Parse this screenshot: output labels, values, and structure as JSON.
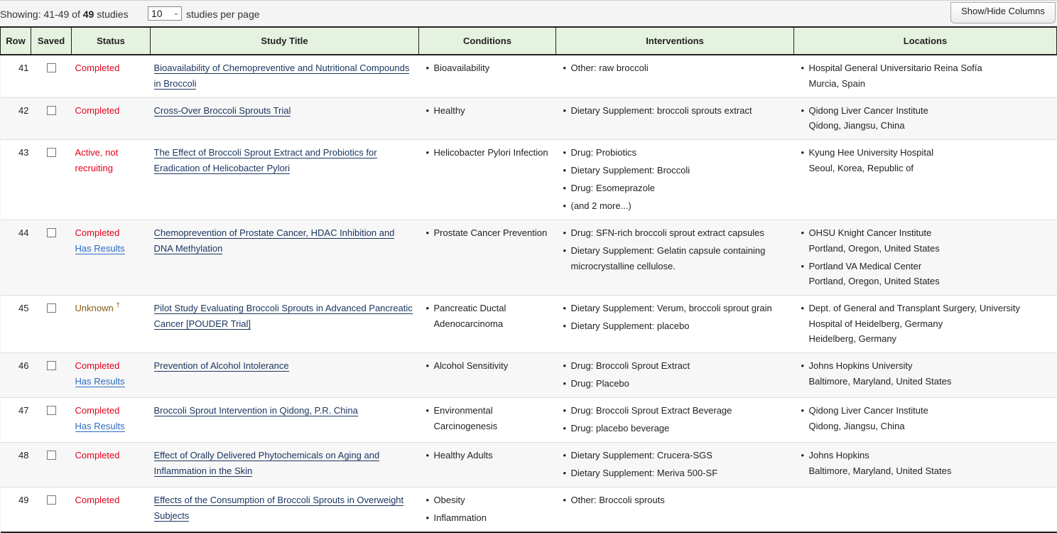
{
  "toolbar": {
    "showing_prefix": "Showing: 41-49 of ",
    "total": "49",
    "showing_suffix": " studies",
    "per_page_value": "10",
    "per_page_label": "studies per page",
    "show_hide_label": "Show/Hide Columns"
  },
  "columns": [
    "Row",
    "Saved",
    "Status",
    "Study Title",
    "Conditions",
    "Interventions",
    "Locations"
  ],
  "colors": {
    "completed": "#e3001b",
    "unknown": "#8a5a14",
    "link": "#1b3660",
    "has_results": "#2a6bc4",
    "header_bg": "#e6f2e0"
  },
  "rows": [
    {
      "row": "41",
      "saved": false,
      "status": "Completed",
      "status_type": "completed",
      "has_results": "",
      "title": "Bioavailability of Chemopreventive and Nutritional Compounds in Broccoli",
      "conditions": [
        "Bioavailability"
      ],
      "interventions": [
        "Other: raw broccoli"
      ],
      "locations": [
        [
          "Hospital General Universitario Reina Sofía",
          "Murcia, Spain"
        ]
      ]
    },
    {
      "row": "42",
      "saved": false,
      "status": "Completed",
      "status_type": "completed",
      "has_results": "",
      "title": "Cross-Over Broccoli Sprouts Trial",
      "conditions": [
        "Healthy"
      ],
      "interventions": [
        "Dietary Supplement: broccoli sprouts extract"
      ],
      "locations": [
        [
          "Qidong Liver Cancer Institute",
          "Qidong, Jiangsu, China"
        ]
      ]
    },
    {
      "row": "43",
      "saved": false,
      "status": "Active, not recruiting",
      "status_type": "active",
      "has_results": "",
      "title": "The Effect of Broccoli Sprout Extract and Probiotics for Eradication of Helicobacter Pylori",
      "conditions": [
        "Helicobacter Pylori Infection"
      ],
      "interventions": [
        "Drug: Probiotics",
        "Dietary Supplement: Broccoli",
        "Drug: Esomeprazole",
        "(and 2 more...)"
      ],
      "locations": [
        [
          "Kyung Hee University Hospital",
          "Seoul, Korea, Republic of"
        ]
      ]
    },
    {
      "row": "44",
      "saved": false,
      "status": "Completed",
      "status_type": "completed",
      "has_results": "Has Results",
      "title": "Chemoprevention of Prostate Cancer, HDAC Inhibition and DNA Methylation",
      "conditions": [
        "Prostate Cancer Prevention"
      ],
      "interventions": [
        "Drug: SFN-rich broccoli sprout extract capsules",
        "Dietary Supplement: Gelatin capsule containing microcrystalline cellulose."
      ],
      "locations": [
        [
          "OHSU Knight Cancer Institute",
          "Portland, Oregon, United States"
        ],
        [
          "Portland VA Medical Center",
          "Portland, Oregon, United States"
        ]
      ]
    },
    {
      "row": "45",
      "saved": false,
      "status": "Unknown",
      "status_type": "unknown",
      "dagger": "†",
      "has_results": "",
      "title": "Pilot Study Evaluating Broccoli Sprouts in Advanced Pancreatic Cancer [POUDER Trial]",
      "conditions": [
        "Pancreatic Ductal Adenocarcinoma"
      ],
      "interventions": [
        "Dietary Supplement: Verum, broccoli sprout grain",
        "Dietary Supplement: placebo"
      ],
      "locations": [
        [
          "Dept. of General and Transplant Surgery, University Hospital of Heidelberg, Germany",
          "Heidelberg, Germany"
        ]
      ]
    },
    {
      "row": "46",
      "saved": false,
      "status": "Completed",
      "status_type": "completed",
      "has_results": "Has Results",
      "title": "Prevention of Alcohol Intolerance",
      "conditions": [
        "Alcohol Sensitivity"
      ],
      "interventions": [
        "Drug: Broccoli Sprout Extract",
        "Drug: Placebo"
      ],
      "locations": [
        [
          "Johns Hopkins University",
          "Baltimore, Maryland, United States"
        ]
      ]
    },
    {
      "row": "47",
      "saved": false,
      "status": "Completed",
      "status_type": "completed",
      "has_results": "Has Results",
      "title": "Broccoli Sprout Intervention in Qidong, P.R. China",
      "conditions": [
        "Environmental Carcinogenesis"
      ],
      "interventions": [
        "Drug: Broccoli Sprout Extract Beverage",
        "Drug: placebo beverage"
      ],
      "locations": [
        [
          "Qidong Liver Cancer Institute",
          "Qidong, Jiangsu, China"
        ]
      ]
    },
    {
      "row": "48",
      "saved": false,
      "status": "Completed",
      "status_type": "completed",
      "has_results": "",
      "title": "Effect of Orally Delivered Phytochemicals on Aging and Inflammation in the Skin",
      "conditions": [
        "Healthy Adults"
      ],
      "interventions": [
        "Dietary Supplement: Crucera-SGS",
        "Dietary Supplement: Meriva 500-SF"
      ],
      "locations": [
        [
          "Johns Hopkins",
          "Baltimore, Maryland, United States"
        ]
      ]
    },
    {
      "row": "49",
      "saved": false,
      "status": "Completed",
      "status_type": "completed",
      "has_results": "",
      "title": "Effects of the Consumption of Broccoli Sprouts in Overweight Subjects",
      "conditions": [
        "Obesity",
        "Inflammation"
      ],
      "interventions": [
        "Other: Broccoli sprouts"
      ],
      "locations": []
    }
  ]
}
